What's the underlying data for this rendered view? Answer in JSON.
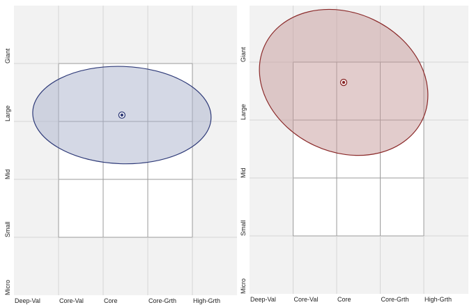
{
  "chart_data": [
    {
      "type": "scatter",
      "title": "",
      "x_categories": [
        "Deep-Val",
        "Core-Val",
        "Core",
        "Core-Grth",
        "High-Grth"
      ],
      "y_categories": [
        "Micro",
        "Small",
        "Mid",
        "Large",
        "Giant"
      ],
      "xlim": [
        0,
        5
      ],
      "ylim": [
        0,
        5
      ],
      "grid": true,
      "centroid": {
        "x": 2.42,
        "y": 3.11
      },
      "zone": {
        "rx": 2.0,
        "ry": 0.84,
        "rotation_deg": 2
      },
      "color": "#2e3a78",
      "fill": "#a9b1cc"
    },
    {
      "type": "scatter",
      "title": "",
      "x_categories": [
        "Deep-Val",
        "Core-Val",
        "Core",
        "Core-Grth",
        "High-Grth"
      ],
      "y_categories": [
        "Micro",
        "Small",
        "Mid",
        "Large",
        "Giant"
      ],
      "xlim": [
        0,
        5
      ],
      "ylim": [
        0,
        5
      ],
      "grid": true,
      "centroid": {
        "x": 2.16,
        "y": 3.65
      },
      "zone": {
        "rx": 2.0,
        "ry": 1.2,
        "rotation_deg": 25
      },
      "color": "#8b2a2a",
      "fill": "#c69a9a"
    }
  ]
}
